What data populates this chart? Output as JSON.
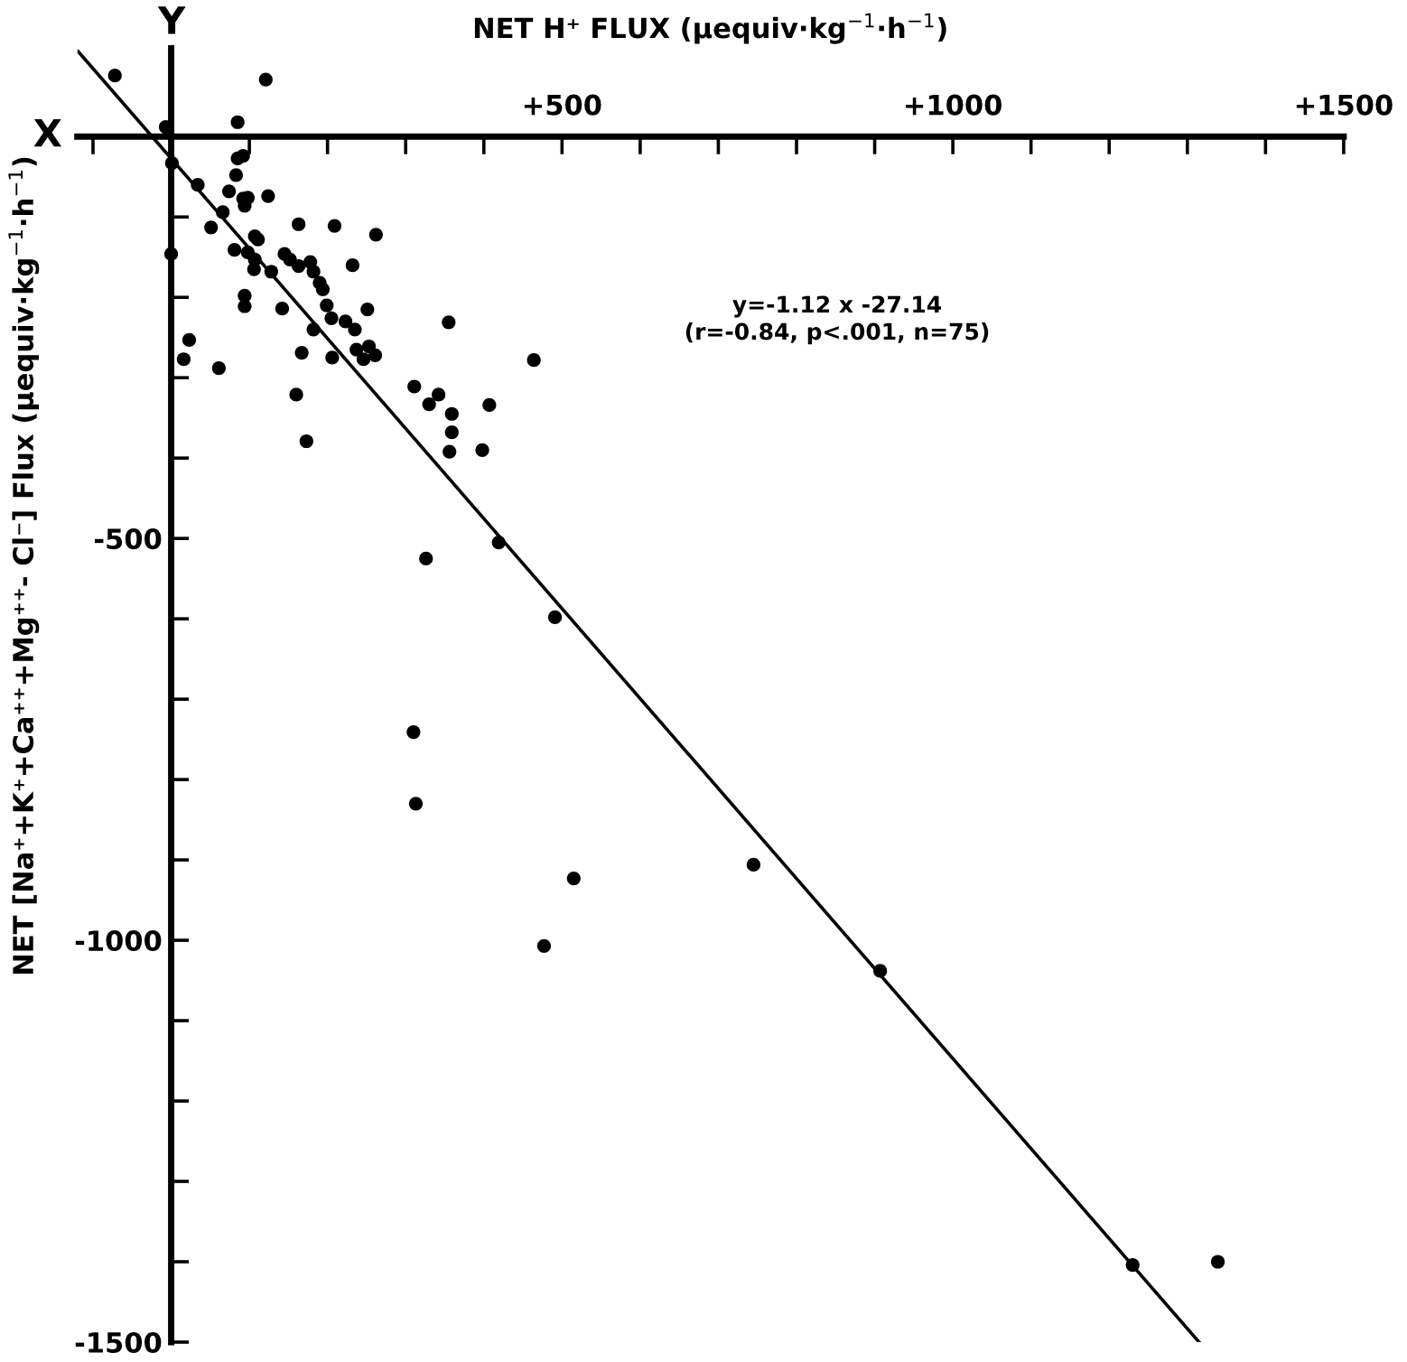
{
  "chart_data": {
    "type": "scatter",
    "xlabel": "NET H⁺ FLUX (μequiv·kg$^{−1}$·h$^{−1}$)",
    "ylabel": "NET [Na⁺+K⁺+Ca⁺⁺+Mg⁺⁺- Cl⁻] Flux (μequiv·kg$^{−1}$·h$^{−1}$)",
    "annotations": [
      "X",
      "Y",
      "y=-1.12 x -27.14\n(r=-0.84, p<.001, n=75)"
    ],
    "xlim": [
      -120,
      1500
    ],
    "ylim": [
      -1500,
      110
    ],
    "xticks": [
      {
        "value": -100,
        "label": null
      },
      {
        "value": 100,
        "label": null
      },
      {
        "value": 200,
        "label": null
      },
      {
        "value": 300,
        "label": null
      },
      {
        "value": 400,
        "label": null
      },
      {
        "value": 500,
        "label": "+500"
      },
      {
        "value": 600,
        "label": null
      },
      {
        "value": 700,
        "label": null
      },
      {
        "value": 800,
        "label": null
      },
      {
        "value": 900,
        "label": null
      },
      {
        "value": 1000,
        "label": "+1000"
      },
      {
        "value": 1100,
        "label": null
      },
      {
        "value": 1200,
        "label": null
      },
      {
        "value": 1300,
        "label": null
      },
      {
        "value": 1400,
        "label": null
      },
      {
        "value": 1500,
        "label": "+1500"
      }
    ],
    "yticks": [
      -1500,
      {
        "value": -1400,
        "label": null
      },
      {
        "value": -1300,
        "label": null
      },
      {
        "value": -1200,
        "label": null
      },
      {
        "value": -1100,
        "label": null
      },
      -1000,
      {
        "value": -900,
        "label": null
      },
      {
        "value": -800,
        "label": null
      },
      {
        "value": -700,
        "label": null
      },
      {
        "value": -600,
        "label": null
      },
      -500,
      {
        "value": -400,
        "label": null
      },
      {
        "value": -300,
        "label": null
      },
      {
        "value": -200,
        "label": null
      },
      {
        "value": -100,
        "label": null
      }
    ],
    "marker": "circle",
    "grid": false,
    "legend": false,
    "series": [
      {
        "color": "#000000",
        "x": [
          -72,
          -7,
          85,
          121,
          1,
          85,
          92,
          83,
          34,
          74,
          92,
          98,
          94,
          124,
          66,
          51,
          107,
          111,
          163,
          209,
          262,
          0,
          81,
          98,
          107,
          106,
          128,
          145,
          152,
          163,
          178,
          182,
          190,
          194,
          232,
          94,
          94,
          142,
          199,
          205,
          182,
          223,
          235,
          251,
          23,
          16,
          61,
          167,
          206,
          237,
          253,
          246,
          261,
          355,
          464,
          160,
          173,
          311,
          330,
          342,
          359,
          359,
          356,
          407,
          398,
          326,
          419,
          491,
          310,
          313,
          515,
          477,
          745,
          907,
          1230,
          1339
        ],
        "values": [
          76,
          12,
          18,
          71,
          -33,
          -27,
          -24,
          -48,
          -60,
          -68,
          -77,
          -76,
          -86,
          -74,
          -94,
          -113,
          -124,
          -128,
          -109,
          -111,
          -122,
          -146,
          -141,
          -144,
          -153,
          -165,
          -168,
          -146,
          -153,
          -161,
          -156,
          -168,
          -182,
          -190,
          -160,
          -198,
          -211,
          -214,
          -210,
          -226,
          -240,
          -230,
          -240,
          -215,
          -253,
          -277,
          -288,
          -269,
          -275,
          -265,
          -261,
          -277,
          -272,
          -231,
          -278,
          -321,
          -379,
          -311,
          -333,
          -321,
          -345,
          -368,
          -392,
          -334,
          -390,
          -525,
          -505,
          -598,
          -741,
          -830,
          -923,
          -1007,
          -906,
          -1038,
          -1404,
          -1400
        ]
      },
      {
        "type": "line",
        "color": "#000000",
        "marker": "none",
        "line_style": "solid",
        "x": [
          -119,
          1315
        ],
        "values": [
          106,
          -1500
        ]
      }
    ]
  }
}
